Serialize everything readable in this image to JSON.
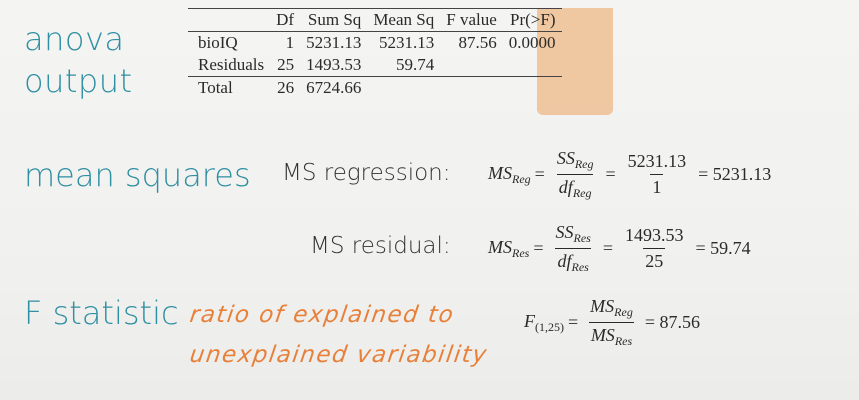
{
  "titles": {
    "anova_line1": "anova",
    "anova_line2": "output",
    "mean_squares": "mean squares",
    "f_statistic": "F statistic"
  },
  "anova_table": {
    "headers": [
      "",
      "Df",
      "Sum Sq",
      "Mean Sq",
      "F value",
      "Pr(>F)"
    ],
    "rows": [
      [
        "bioIQ",
        "1",
        "5231.13",
        "5231.13",
        "87.56",
        "0.0000"
      ],
      [
        "Residuals",
        "25",
        "1493.53",
        "59.74",
        "",
        ""
      ]
    ],
    "total": [
      "Total",
      "26",
      "6724.66",
      "",
      "",
      ""
    ],
    "highlight_color": "#edbe93"
  },
  "ms_regression": {
    "label": "MS regression:",
    "lhs": "MS",
    "lhs_sub": "Reg",
    "num": "SS",
    "num_sub": "Reg",
    "den": "df",
    "den_sub": "Reg",
    "num2": "5231.13",
    "den2": "1",
    "result": "= 5231.13"
  },
  "ms_residual": {
    "label": "MS residual:",
    "lhs": "MS",
    "lhs_sub": "Res",
    "num": "SS",
    "num_sub": "Res",
    "den": "df",
    "den_sub": "Res",
    "num2": "1493.53",
    "den2": "25",
    "result": "= 59.74"
  },
  "f_stat": {
    "lhs": "F",
    "lhs_sub": "(1,25)",
    "num": "MS",
    "num_sub": "Reg",
    "den": "MS",
    "den_sub": "Res",
    "result": "= 87.56"
  },
  "annotation": {
    "line1": "ratio of explained to",
    "line2": "unexplained variability",
    "color": "#e8803a"
  },
  "colors": {
    "heading": "#2f8fa3",
    "background": "#f2f2f0"
  }
}
